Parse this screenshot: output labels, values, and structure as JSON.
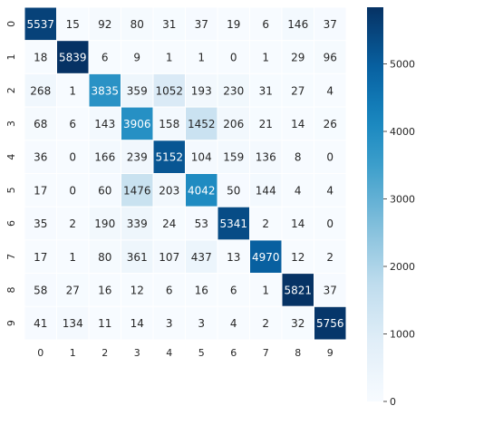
{
  "chart_data": {
    "type": "heatmap",
    "title": "",
    "xlabel": "",
    "ylabel": "",
    "x_categories": [
      "0",
      "1",
      "2",
      "3",
      "4",
      "5",
      "6",
      "7",
      "8",
      "9"
    ],
    "y_categories": [
      "0",
      "1",
      "2",
      "3",
      "4",
      "5",
      "6",
      "7",
      "8",
      "9"
    ],
    "values": [
      [
        5537,
        15,
        92,
        80,
        31,
        37,
        19,
        6,
        146,
        37
      ],
      [
        18,
        5839,
        6,
        9,
        1,
        1,
        0,
        1,
        29,
        96
      ],
      [
        268,
        1,
        3835,
        359,
        1052,
        193,
        230,
        31,
        27,
        4
      ],
      [
        68,
        6,
        143,
        3906,
        158,
        1452,
        206,
        21,
        14,
        26
      ],
      [
        36,
        0,
        166,
        239,
        5152,
        104,
        159,
        136,
        8,
        0
      ],
      [
        17,
        0,
        60,
        1476,
        203,
        4042,
        50,
        144,
        4,
        4
      ],
      [
        35,
        2,
        190,
        339,
        24,
        53,
        5341,
        2,
        14,
        0
      ],
      [
        17,
        1,
        80,
        361,
        107,
        437,
        13,
        4970,
        12,
        2
      ],
      [
        58,
        27,
        16,
        12,
        6,
        16,
        6,
        1,
        5821,
        37
      ],
      [
        41,
        134,
        11,
        14,
        3,
        3,
        4,
        2,
        32,
        5756
      ]
    ],
    "colormap": "Blues",
    "color_range": [
      0,
      5839
    ],
    "colorbar_ticks": [
      0,
      1000,
      2000,
      3000,
      4000,
      5000
    ],
    "colorbar_tick_labels": [
      "0",
      "1000",
      "2000",
      "3000",
      "4000",
      "5000"
    ],
    "colors": {
      "low": "#f7fbff",
      "high": "#08306b",
      "text_dark": "#262626",
      "text_light": "#ffffff",
      "cell_border": "#ffffff"
    }
  }
}
